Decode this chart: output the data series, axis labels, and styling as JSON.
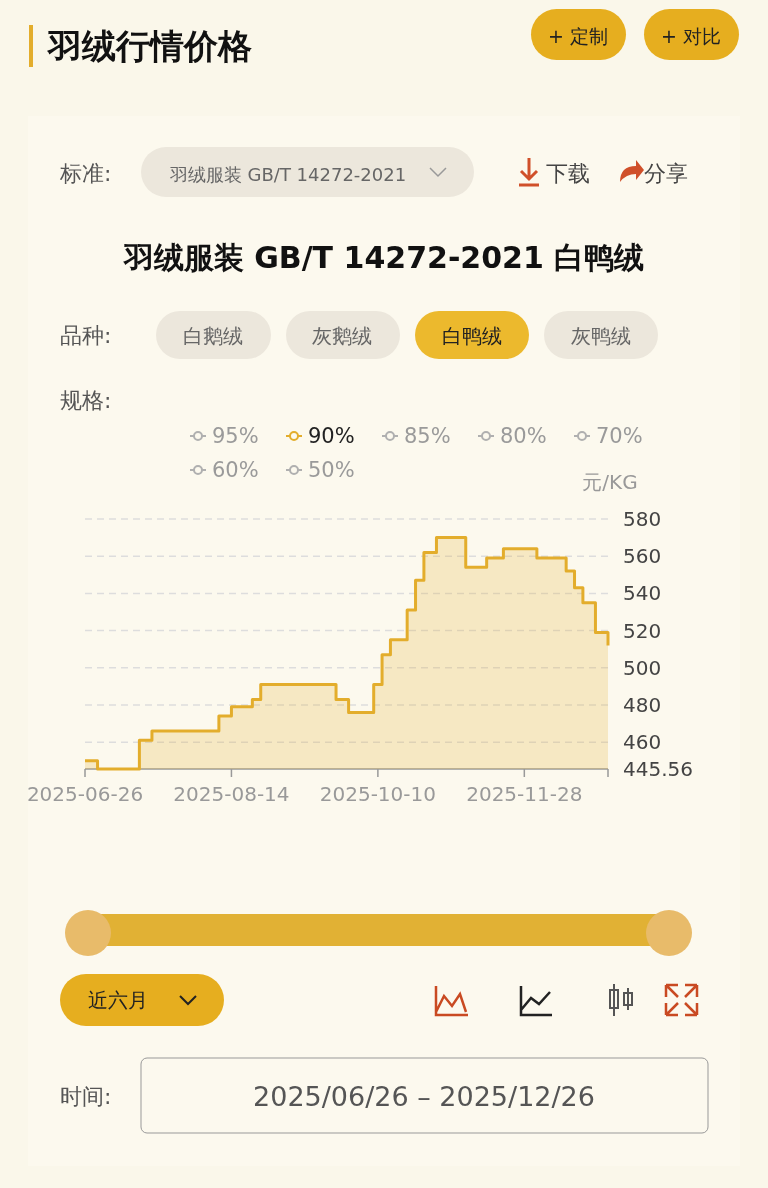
{
  "chart_data": {
    "type": "step",
    "title": "羽绒行情价格",
    "subtitle": "羽绒服装 GB/T 14272-2021 白鸭绒",
    "ylabel": "元/KG",
    "annotations": [
      "标准:",
      "羽绒服装 GB/T 14272-2021",
      "下载",
      "分享",
      "品种:",
      "白鹅绒",
      "灰鹅绒",
      "白鸭绒",
      "灰鸭绒",
      "规格:",
      "近六月",
      "时间:",
      "2025/06/26 – 2025/12/26",
      "+ 定制",
      "+ 对比",
      "95%",
      "85%",
      "80%",
      "70%",
      "60%",
      "50%"
    ],
    "categories": [
      "2025-06-26",
      null,
      null,
      null,
      null,
      null,
      null,
      null,
      null,
      null,
      null,
      null,
      null,
      null,
      null,
      null,
      null,
      null,
      null,
      null,
      null,
      null,
      null,
      null,
      null,
      null,
      null,
      null,
      null,
      null,
      null,
      null,
      null,
      null,
      null,
      "2025-08-14",
      null,
      null,
      null,
      null,
      null,
      null,
      null,
      null,
      null,
      null,
      null,
      null,
      null,
      null,
      null,
      null,
      null,
      null,
      null,
      null,
      null,
      null,
      null,
      null,
      null,
      null,
      null,
      null,
      null,
      null,
      null,
      null,
      null,
      null,
      "2025-10-10",
      null,
      null,
      null,
      null,
      null,
      null,
      null,
      null,
      null,
      null,
      null,
      null,
      null,
      null,
      null,
      null,
      null,
      null,
      null,
      null,
      null,
      null,
      null,
      null,
      null,
      null,
      null,
      null,
      null,
      null,
      null,
      null,
      null,
      null,
      "2025-11-28",
      null,
      null,
      null,
      null,
      null,
      null,
      null,
      null,
      null,
      null,
      null,
      null,
      null,
      null,
      null,
      null,
      null,
      null,
      null,
      null
    ],
    "series": [
      {
        "name": "90%",
        "color": "#e3ad2c",
        "values": [
          450,
          450,
          450,
          445.56,
          445.56,
          445.56,
          445.56,
          445.56,
          445.56,
          445.56,
          445.56,
          445.56,
          445.56,
          461,
          461,
          461,
          466,
          466,
          466,
          466,
          466,
          466,
          466,
          466,
          466,
          466,
          466,
          466,
          466,
          466,
          466,
          466,
          474,
          474,
          474,
          479,
          479,
          479,
          479,
          479,
          483,
          483,
          491,
          491,
          491,
          491,
          491,
          491,
          491,
          491,
          491,
          491,
          491,
          491,
          491,
          491,
          491,
          491,
          491,
          491,
          483,
          483,
          483,
          476,
          476,
          476,
          476,
          476,
          476,
          491,
          491,
          507,
          507,
          515,
          515,
          515,
          515,
          531,
          531,
          547,
          547,
          562,
          562,
          562,
          570,
          570,
          570,
          570,
          570,
          570,
          570,
          554,
          554,
          554,
          554,
          554,
          559,
          559,
          559,
          559,
          564,
          564,
          564,
          564,
          564,
          564,
          564,
          564,
          559,
          559,
          559,
          559,
          559,
          559,
          559,
          552,
          552,
          543,
          543,
          535,
          535,
          535,
          519,
          519,
          519,
          512
        ]
      }
    ],
    "ylim": [
      445.56,
      580
    ],
    "yticks": [
      445.56,
      460,
      480,
      500,
      520,
      540,
      560,
      580
    ],
    "grid": "y",
    "legend": "top",
    "marker": "none",
    "line_style": "solid"
  }
}
